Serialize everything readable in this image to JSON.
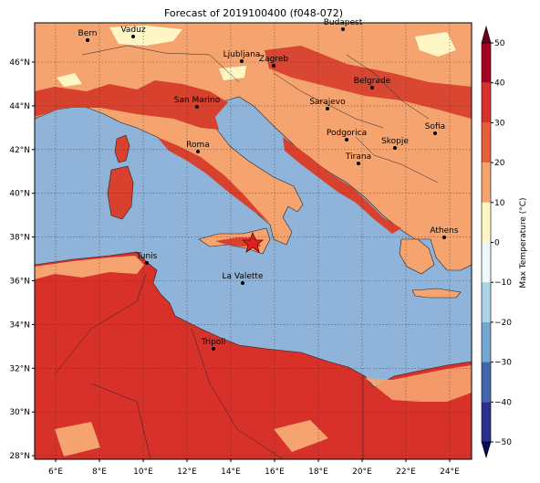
{
  "title": "Forecast of 2019100400 (f048-072)",
  "cities": [
    "Bern",
    "Vaduz",
    "Budapest",
    "Ljubljana",
    "Zagreb",
    "Belgrade",
    "San Marino",
    "Sarajevo",
    "Sofia",
    "Podgorica",
    "Skopje",
    "Roma",
    "Tirana",
    "Athens",
    "Tunis",
    "La Valette",
    "Tripoli"
  ],
  "lat_ticks": [
    "46°N",
    "44°N",
    "42°N",
    "40°N",
    "38°N",
    "36°N",
    "34°N",
    "32°N",
    "30°N",
    "28°N"
  ],
  "lon_ticks": [
    "6°E",
    "8°E",
    "10°E",
    "12°E",
    "14°E",
    "16°E",
    "18°E",
    "20°E",
    "22°E",
    "24°E"
  ],
  "colorbar": {
    "label": "Max Temperature (°C)",
    "ticks": [
      "50",
      "40",
      "30",
      "20",
      "10",
      "0",
      "−10",
      "−20",
      "−30",
      "−40",
      "−50"
    ]
  }
}
